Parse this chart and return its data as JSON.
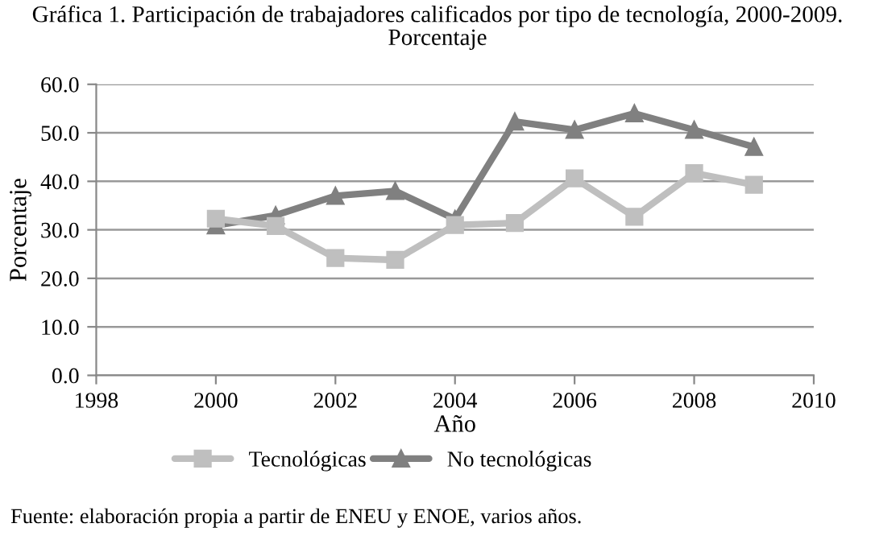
{
  "chart_data": {
    "type": "line",
    "title": "Gráfica 1. Participación de trabajadores calificados por tipo de tecnología, 2000-2009.\nPorcentaje",
    "xlabel": "Año",
    "ylabel": "Porcentaje",
    "x": [
      2000,
      2001,
      2002,
      2003,
      2004,
      2005,
      2006,
      2007,
      2008,
      2009
    ],
    "series": [
      {
        "name": "Tecnológicas",
        "color": "#bfbfbf",
        "marker": "square",
        "values": [
          32.3,
          30.8,
          24.2,
          23.8,
          31.0,
          31.4,
          40.6,
          32.7,
          41.7,
          39.3
        ]
      },
      {
        "name": "No tecnológicas",
        "color": "#808080",
        "marker": "triangle",
        "values": [
          30.9,
          33.0,
          37.0,
          38.0,
          32.2,
          52.3,
          50.6,
          54.0,
          50.6,
          47.1
        ]
      }
    ],
    "xlim": [
      1998,
      2010
    ],
    "xticks": [
      1998,
      2000,
      2002,
      2004,
      2006,
      2008,
      2010
    ],
    "ylim": [
      0,
      60
    ],
    "yticks": [
      {
        "value": 0,
        "label": "0.0"
      },
      {
        "value": 10,
        "label": "10.0"
      },
      {
        "value": 20,
        "label": "20.0"
      },
      {
        "value": 30,
        "label": "30.0"
      },
      {
        "value": 40,
        "label": "40.0"
      },
      {
        "value": 50,
        "label": "50.0"
      },
      {
        "value": 60,
        "label": "60.0"
      }
    ],
    "grid": "y",
    "legend": "bottom",
    "line_style": "solid",
    "annotations": [
      "Fuente: elaboración propia a partir de ENEU y ENOE, varios años."
    ]
  }
}
